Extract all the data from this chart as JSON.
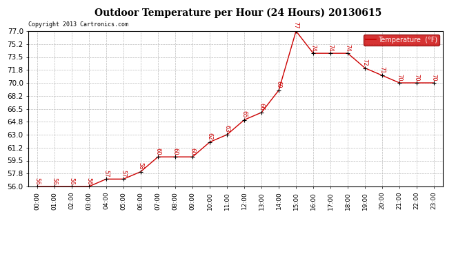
{
  "title": "Outdoor Temperature per Hour (24 Hours) 20130615",
  "copyright": "Copyright 2013 Cartronics.com",
  "legend_label": "Temperature  (°F)",
  "hours": [
    0,
    1,
    2,
    3,
    4,
    5,
    6,
    7,
    8,
    9,
    10,
    11,
    12,
    13,
    14,
    15,
    16,
    17,
    18,
    19,
    20,
    21,
    22,
    23
  ],
  "temps": [
    56,
    56,
    56,
    56,
    57,
    57,
    58,
    60,
    60,
    60,
    62,
    63,
    65,
    66,
    69,
    77,
    74,
    74,
    74,
    72,
    71,
    70,
    70,
    70
  ],
  "yticks": [
    56.0,
    57.8,
    59.5,
    61.2,
    63.0,
    64.8,
    66.5,
    68.2,
    70.0,
    71.8,
    73.5,
    75.2,
    77.0
  ],
  "xtick_labels": [
    "00:00",
    "01:00",
    "02:00",
    "03:00",
    "04:00",
    "05:00",
    "06:00",
    "07:00",
    "08:00",
    "09:00",
    "10:00",
    "11:00",
    "12:00",
    "13:00",
    "14:00",
    "15:00",
    "16:00",
    "17:00",
    "18:00",
    "19:00",
    "20:00",
    "21:00",
    "22:00",
    "23:00"
  ],
  "line_color": "#cc0000",
  "marker_color": "#000000",
  "label_color": "#cc0000",
  "bg_color": "#ffffff",
  "grid_color": "#bbbbbb",
  "legend_bg": "#cc0000",
  "legend_text": "#ffffff",
  "title_color": "#000000",
  "copyright_color": "#000000",
  "ylim_min": 56.0,
  "ylim_max": 77.0,
  "figwidth": 6.9,
  "figheight": 3.75,
  "dpi": 100
}
